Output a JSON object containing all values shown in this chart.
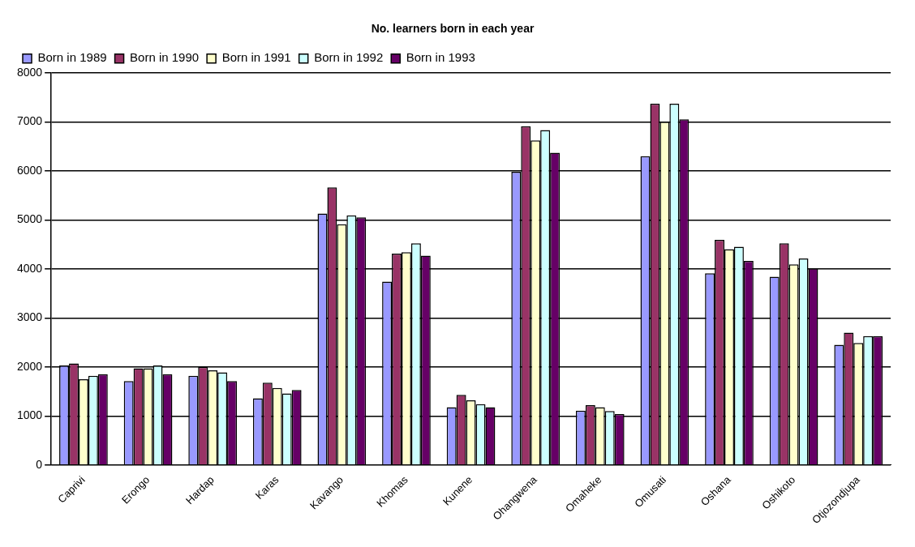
{
  "chart_data": {
    "type": "bar",
    "title": "No. learners born in each year",
    "categories": [
      "Caprivi",
      "Erongo",
      "Hardap",
      "Karas",
      "Kavango",
      "Khomas",
      "Kunene",
      "Ohangwena",
      "Omaheke",
      "Omusati",
      "Oshana",
      "Oshikoto",
      "Otjozondjupa"
    ],
    "series": [
      {
        "name": "Born in 1989",
        "color": "#9999ff",
        "values": [
          2030,
          1710,
          1820,
          1360,
          5130,
          3740,
          1180,
          5980,
          1110,
          6300,
          3910,
          3840,
          2450
        ]
      },
      {
        "name": "Born in 1990",
        "color": "#993366",
        "values": [
          2070,
          1970,
          2000,
          1680,
          5660,
          4310,
          1430,
          6910,
          1220,
          7370,
          4590,
          4520,
          2700
        ]
      },
      {
        "name": "Born in 1991",
        "color": "#ffffcc",
        "values": [
          1750,
          1970,
          1930,
          1570,
          4910,
          4340,
          1320,
          6620,
          1180,
          7000,
          4400,
          4090,
          2490
        ]
      },
      {
        "name": "Born in 1992",
        "color": "#ccffff",
        "values": [
          1820,
          2030,
          1890,
          1460,
          5090,
          4520,
          1240,
          6830,
          1100,
          7370,
          4450,
          4210,
          2630
        ]
      },
      {
        "name": "Born in 1993",
        "color": "#660066",
        "values": [
          1850,
          1850,
          1710,
          1530,
          5050,
          4270,
          1180,
          6370,
          1040,
          7050,
          4160,
          4010,
          2630
        ]
      }
    ],
    "ylim": [
      0,
      8000
    ],
    "yticks": [
      0,
      1000,
      2000,
      3000,
      4000,
      5000,
      6000,
      7000,
      8000
    ],
    "grid": "y",
    "legend": "top left"
  }
}
